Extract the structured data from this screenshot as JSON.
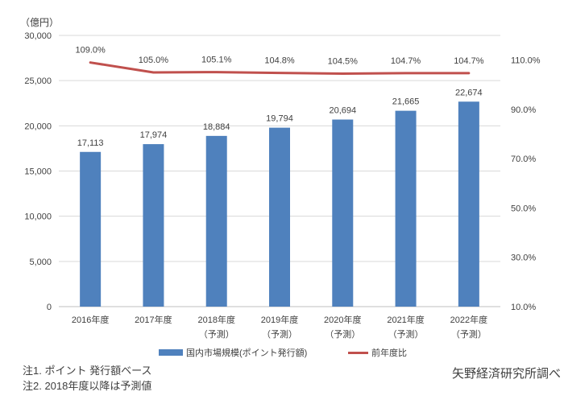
{
  "chart": {
    "notes": [
      "注1. ポイント 発行額ベース",
      "注2. 2018年度以降は予測値"
    ],
    "source": "矢野経済研究所調べ"
  },
  "chart_data": {
    "type": "combo",
    "categories": [
      "2016年度",
      "2017年度",
      "2018年度",
      "2019年度",
      "2020年度",
      "2021年度",
      "2022年度"
    ],
    "category_sublabels": [
      "",
      "",
      "（予測）",
      "（予測）",
      "（予測）",
      "（予測）",
      "（予測）"
    ],
    "series": [
      {
        "name": "国内市場規模(ポイント発行額)",
        "type": "bar",
        "axis": "left",
        "color": "#4f81bd",
        "values": [
          17113,
          17974,
          18884,
          19794,
          20694,
          21665,
          22674
        ],
        "labels": [
          "17,113",
          "17,974",
          "18,884",
          "19,794",
          "20,694",
          "21,665",
          "22,674"
        ]
      },
      {
        "name": "前年度比",
        "type": "line",
        "axis": "right",
        "color": "#c0504d",
        "values": [
          109.0,
          105.0,
          105.1,
          104.8,
          104.5,
          104.7,
          104.7
        ],
        "labels": [
          "109.0%",
          "105.0%",
          "105.1%",
          "104.8%",
          "104.5%",
          "104.7%",
          "104.7%"
        ]
      }
    ],
    "left_axis": {
      "title": "（億円）",
      "min": 0,
      "max": 30000,
      "step": 5000,
      "tick_labels": [
        "0",
        "5,000",
        "10,000",
        "15,000",
        "20,000",
        "25,000",
        "30,000"
      ]
    },
    "right_axis": {
      "min": 10,
      "max": 120,
      "ticks": [
        10,
        30,
        50,
        70,
        90,
        110
      ],
      "tick_labels": [
        "10.0%",
        "30.0%",
        "50.0%",
        "70.0%",
        "90.0%",
        "110.0%"
      ]
    },
    "grid": true,
    "legend_position": "bottom",
    "colors": {
      "gridline": "#d9d9d9",
      "axis_line": "#bfbfbf",
      "text": "#404040"
    }
  }
}
